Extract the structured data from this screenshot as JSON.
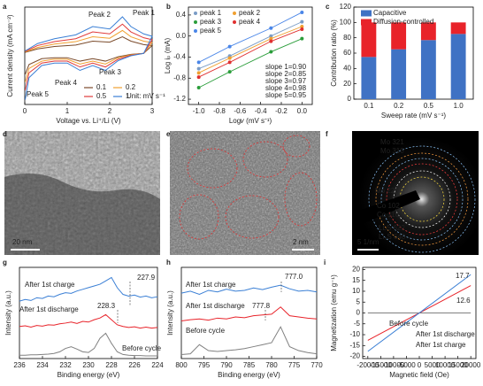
{
  "panel_labels": [
    "a",
    "b",
    "c",
    "d",
    "e",
    "f",
    "g",
    "h",
    "i"
  ],
  "chart_data": [
    {
      "type": "line",
      "xlabel": "Voltage vs. Li⁺/Li (V)",
      "ylabel": "Current density (mA cm⁻²)",
      "x": [
        0.01,
        0.3,
        0.7,
        1.2,
        1.6,
        2.0,
        2.3,
        2.5,
        2.8,
        3.0,
        2.8,
        2.5,
        2.2,
        1.9,
        1.6,
        1.3,
        1.0,
        0.7,
        0.4,
        0.1,
        0.01
      ],
      "xlim": [
        0,
        3
      ],
      "xticks": [
        0,
        1,
        2,
        3
      ],
      "ylim": [
        -1.05,
        0.95
      ],
      "series": [
        {
          "name": "0.1",
          "color": "#7a4a2a",
          "values": [
            0.02,
            0.09,
            0.14,
            0.17,
            0.25,
            0.23,
            0.34,
            0.25,
            0.18,
            0.16,
            0.0,
            -0.02,
            -0.07,
            -0.16,
            -0.11,
            -0.16,
            -0.09,
            -0.09,
            -0.11,
            -0.23,
            -0.43
          ]
        },
        {
          "name": "0.2",
          "color": "#f0a030",
          "values": [
            0.03,
            0.12,
            0.19,
            0.24,
            0.34,
            0.31,
            0.47,
            0.34,
            0.25,
            0.22,
            0.0,
            -0.03,
            -0.09,
            -0.22,
            -0.16,
            -0.22,
            -0.12,
            -0.12,
            -0.16,
            -0.31,
            -0.59
          ]
        },
        {
          "name": "0.5",
          "color": "#e03a3a",
          "values": [
            0.04,
            0.16,
            0.24,
            0.3,
            0.44,
            0.4,
            0.6,
            0.44,
            0.32,
            0.28,
            0.0,
            -0.04,
            -0.12,
            -0.28,
            -0.2,
            -0.28,
            -0.16,
            -0.16,
            -0.2,
            -0.4,
            -0.76
          ]
        },
        {
          "name": "1",
          "color": "#3a7fd5",
          "values": [
            0.05,
            0.2,
            0.3,
            0.38,
            0.55,
            0.5,
            0.75,
            0.55,
            0.4,
            0.35,
            0.0,
            -0.05,
            -0.15,
            -0.35,
            -0.25,
            -0.35,
            -0.2,
            -0.2,
            -0.25,
            -0.5,
            -0.95
          ]
        }
      ],
      "legend_note": "Unit: mV s⁻¹",
      "annotations": [
        "Peak 1",
        "Peak 2",
        "Peak 3",
        "Peak 4",
        "Peak 5"
      ]
    },
    {
      "type": "scatter",
      "xlabel": "Log𝑣 (mV s⁻¹)",
      "ylabel": "Log iₚ (mA)",
      "x": [
        -1.0,
        -0.7,
        -0.3,
        0.0
      ],
      "xlim": [
        -1.1,
        0.1
      ],
      "xticks": [
        {
          "value": -1,
          "label": "-1.0"
        },
        -0.8,
        -0.6,
        -0.4,
        -0.2,
        {
          "value": 0,
          "label": "0.0"
        }
      ],
      "ylim": [
        -1.3,
        0.55
      ],
      "yticks": [
        0.4,
        {
          "value": 0,
          "label": "0.0"
        },
        -0.4,
        -0.8,
        -1.2
      ],
      "series": [
        {
          "name": "peak 1",
          "color": "#7a9cc6",
          "values": [
            -0.62,
            -0.38,
            0.0,
            0.27
          ]
        },
        {
          "name": "peak 2",
          "color": "#f0a030",
          "values": [
            -0.7,
            -0.42,
            -0.05,
            0.18
          ]
        },
        {
          "name": "peak 3",
          "color": "#2a9d3a",
          "values": [
            -0.98,
            -0.68,
            -0.3,
            -0.05
          ]
        },
        {
          "name": "peak 4",
          "color": "#e03030",
          "values": [
            -0.78,
            -0.5,
            -0.1,
            0.13
          ]
        },
        {
          "name": "peak 5",
          "color": "#4a86e8",
          "values": [
            -0.5,
            -0.2,
            0.15,
            0.45
          ]
        }
      ],
      "annotations": [
        "slope 1=0.90",
        "slope 2=0.85",
        "slope 3=0.97",
        "slope 4=0.98",
        "slope 5=0.95"
      ]
    },
    {
      "type": "bar",
      "xlabel": "Sweep rate (mV s⁻¹)",
      "ylabel": "Contribution ratio (%)",
      "categories": [
        "0.1",
        "0.2",
        "0.5",
        "1.0"
      ],
      "ylim": [
        0,
        120
      ],
      "yticks": [
        0,
        20,
        40,
        60,
        80,
        100,
        120
      ],
      "stacked": true,
      "series": [
        {
          "name": "Capacitive",
          "color": "#3f72c4",
          "values": [
            55,
            65,
            77,
            85
          ]
        },
        {
          "name": "Diffusion-controlled",
          "color": "#e8232a",
          "values": [
            45,
            35,
            23,
            15
          ]
        }
      ]
    },
    {
      "type": "line",
      "xlabel": "Binding energy (eV)",
      "ylabel": "Intensity (a.u.)",
      "x": [
        236,
        235.5,
        235,
        234.5,
        234,
        233.5,
        233,
        232.5,
        232,
        231.5,
        231,
        230.5,
        230,
        229.5,
        229,
        228.5,
        228,
        227.5,
        227,
        226.5,
        226,
        225.5,
        225,
        224.5,
        224
      ],
      "xlim": [
        236,
        224
      ],
      "xticks": [
        236,
        234,
        232,
        230,
        228,
        226,
        224
      ],
      "ylim": [
        0,
        2.7
      ],
      "series": [
        {
          "name": "After 1st charge",
          "color": "#3a7fd5",
          "values": [
            1.7,
            1.75,
            1.72,
            1.8,
            1.78,
            1.85,
            1.83,
            1.9,
            1.95,
            1.93,
            2.0,
            2.05,
            2.1,
            2.15,
            2.2,
            2.3,
            2.4,
            2.1,
            1.9,
            1.85,
            1.88,
            1.82,
            1.85,
            1.8,
            1.83
          ]
        },
        {
          "name": "After 1st discharge",
          "color": "#e8232a",
          "values": [
            0.95,
            0.97,
            0.93,
            0.98,
            0.96,
            1.0,
            0.99,
            1.03,
            1.05,
            1.08,
            1.04,
            1.1,
            1.08,
            1.15,
            1.2,
            1.3,
            1.15,
            1.0,
            0.95,
            0.92,
            0.94,
            0.9,
            0.93,
            0.9,
            0.92
          ]
        },
        {
          "name": "Before cycle",
          "color": "#808080",
          "values": [
            0.1,
            0.1,
            0.11,
            0.11,
            0.12,
            0.13,
            0.15,
            0.2,
            0.3,
            0.35,
            0.28,
            0.2,
            0.18,
            0.3,
            0.6,
            0.75,
            0.45,
            0.2,
            0.12,
            0.1,
            0.09,
            0.09,
            0.08,
            0.08,
            0.08
          ]
        }
      ],
      "annotations": [
        "227.9",
        "228.3"
      ]
    },
    {
      "type": "line",
      "xlabel": "Binding energy (eV)",
      "ylabel": "Intensity (a.u.)",
      "x": [
        800,
        798,
        796,
        794,
        792,
        790,
        788,
        786,
        784,
        782,
        780,
        778,
        776,
        774,
        772,
        770
      ],
      "xlim": [
        800,
        770
      ],
      "xticks": [
        800,
        795,
        790,
        785,
        780,
        775,
        770
      ],
      "ylim": [
        0,
        2.3
      ],
      "series": [
        {
          "name": "After 1st charge",
          "color": "#3a7fd5",
          "values": [
            1.65,
            1.7,
            1.62,
            1.72,
            1.68,
            1.75,
            1.7,
            1.72,
            1.78,
            1.74,
            1.8,
            1.85,
            1.76,
            1.7,
            1.72,
            1.68
          ]
        },
        {
          "name": "After 1st discharge",
          "color": "#e8232a",
          "values": [
            0.95,
            0.98,
            1.0,
            0.97,
            1.02,
            1.0,
            1.05,
            1.03,
            1.08,
            1.1,
            1.12,
            1.3,
            1.08,
            1.05,
            1.02,
            1.0
          ]
        },
        {
          "name": "Before cycle",
          "color": "#808080",
          "values": [
            0.1,
            0.12,
            0.35,
            0.2,
            0.18,
            0.2,
            0.22,
            0.25,
            0.3,
            0.35,
            0.4,
            0.8,
            0.3,
            0.2,
            0.15,
            0.12
          ]
        }
      ],
      "annotations": [
        "777.0",
        "777.8"
      ]
    },
    {
      "type": "line",
      "xlabel": "Magnetic field (Oe)",
      "ylabel": "Magnetization (emu g⁻¹)",
      "x": [
        -20000,
        20000
      ],
      "xlim": [
        -22000,
        22000
      ],
      "xticks": [
        -20000,
        -15000,
        -10000,
        -5000,
        0,
        5000,
        10000,
        15000,
        20000
      ],
      "ylim": [
        -21,
        21
      ],
      "yticks": [
        -20,
        -15,
        -10,
        -5,
        0,
        5,
        10,
        15,
        20
      ],
      "series": [
        {
          "name": "Before cycle",
          "color": "#808080",
          "values": [
            0,
            0
          ]
        },
        {
          "name": "After 1st discharge",
          "color": "#e8232a",
          "values": [
            -12.6,
            12.6
          ]
        },
        {
          "name": "After 1st charge",
          "color": "#3a7fd5",
          "values": [
            -17.7,
            17.7
          ]
        }
      ]
    }
  ],
  "images": [
    {
      "scale_bar": "20 nm"
    },
    {
      "scale_bar": "2 nm"
    },
    {
      "scale_bar": "5 1/nm",
      "labels": [
        "Mo 321",
        "Mo 310",
        "Mo 220",
        "Co 102",
        "Co 110",
        "LLS 622",
        "Li₂S 640"
      ]
    }
  ]
}
